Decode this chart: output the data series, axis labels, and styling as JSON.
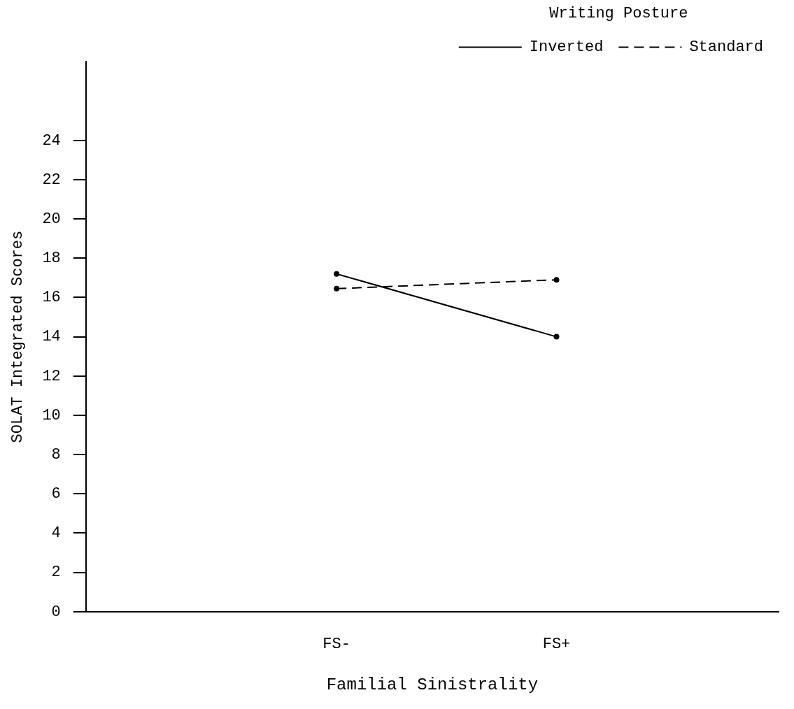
{
  "chart_data": {
    "type": "line",
    "xlabel": "Familial Sinistrality",
    "ylabel": "SOLAT Integrated Scores",
    "legend_title": "Writing Posture",
    "categories": [
      "FS-",
      "FS+"
    ],
    "series": [
      {
        "name": "Inverted",
        "color": "#000000",
        "values": [
          17.2,
          14.0
        ],
        "line_style": "solid"
      },
      {
        "name": "Standard",
        "color": "#000000",
        "values": [
          16.45,
          16.9
        ],
        "line_style": "dashed"
      }
    ],
    "ylim": [
      0,
      28
    ],
    "yticks": [
      0,
      2,
      4,
      6,
      8,
      10,
      12,
      14,
      16,
      18,
      20,
      22,
      24
    ],
    "grid": false,
    "legend": "top right",
    "marker": "circle"
  }
}
